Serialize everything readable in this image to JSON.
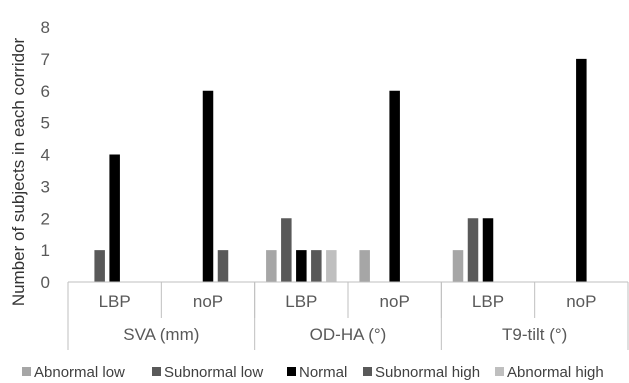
{
  "chart_data": {
    "type": "bar",
    "ylabel": "Number of subjects in each corridor",
    "ylim": [
      0,
      8
    ],
    "yticks": [
      0,
      1,
      2,
      3,
      4,
      5,
      6,
      7,
      8
    ],
    "grid": false,
    "legend_position": "bottom",
    "groups": [
      {
        "label": "SVA (mm)",
        "subgroups": [
          "LBP",
          "noP"
        ]
      },
      {
        "label": "OD-HA (°)",
        "subgroups": [
          "LBP",
          "noP"
        ]
      },
      {
        "label": "T9-tilt (°)",
        "subgroups": [
          "LBP",
          "noP"
        ]
      }
    ],
    "categories": [
      "SVA (mm) LBP",
      "SVA (mm) noP",
      "OD-HA (°) LBP",
      "OD-HA (°) noP",
      "T9-tilt (°) LBP",
      "T9-tilt (°) noP"
    ],
    "series": [
      {
        "name": "Abnormal low",
        "color": "#a6a6a6",
        "values": [
          0,
          0,
          1,
          1,
          1,
          0
        ]
      },
      {
        "name": "Subnormal low",
        "color": "#595959",
        "values": [
          1,
          0,
          2,
          0,
          2,
          0
        ]
      },
      {
        "name": "Normal",
        "color": "#000000",
        "values": [
          4,
          6,
          1,
          6,
          2,
          7
        ]
      },
      {
        "name": "Subnormal high",
        "color": "#595959",
        "values": [
          0,
          1,
          1,
          0,
          0,
          0
        ]
      },
      {
        "name": "Abnormal high",
        "color": "#bfbfbf",
        "values": [
          0,
          0,
          1,
          0,
          0,
          0
        ]
      }
    ]
  }
}
